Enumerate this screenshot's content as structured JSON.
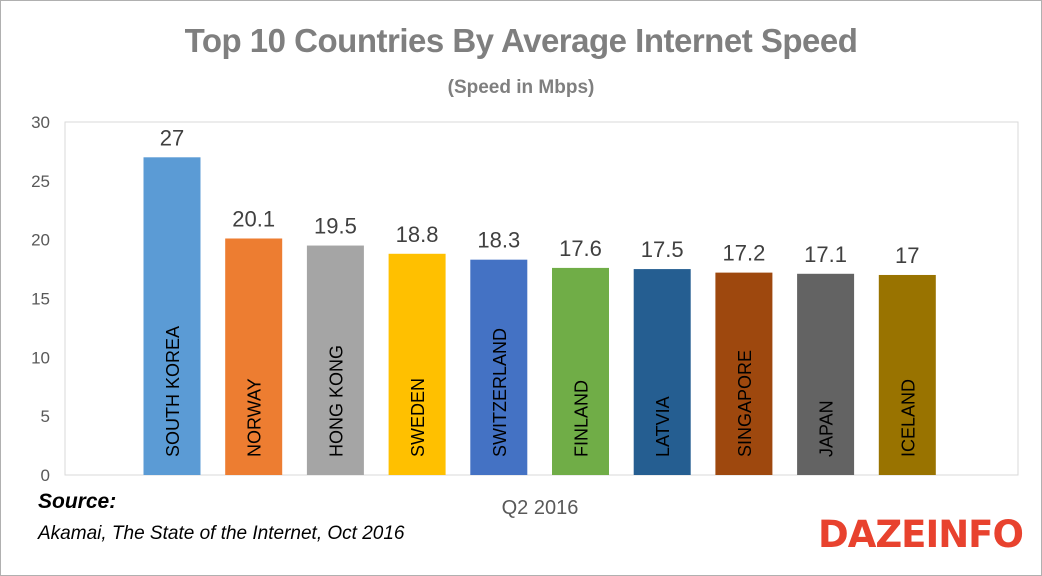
{
  "title": "Top 10 Countries By Average Internet Speed",
  "subtitle": "(Speed in Mbps)",
  "source": {
    "heading": "Source:",
    "text": "Akamai, The State of the Internet, Oct 2016"
  },
  "logo": "DAZEINFO",
  "colors": {
    "axis": "#d9d9d9",
    "tick_text": "#595959",
    "bar_label": "#000000",
    "value_label": "#404040"
  },
  "chart_data": {
    "type": "bar",
    "title": "Top 10 Countries By Average Internet Speed",
    "subtitle": "(Speed in Mbps)",
    "xlabel": "Q2 2016",
    "ylabel": "",
    "ylim": [
      0,
      30
    ],
    "yticks": [
      0,
      5,
      10,
      15,
      20,
      25,
      30
    ],
    "grid": false,
    "legend": "none",
    "categories": [
      "SOUTH KOREA",
      "NORWAY",
      "HONG KONG",
      "SWEDEN",
      "SWITZERLAND",
      "FINLAND",
      "LATVIA",
      "SINGAPORE",
      "JAPAN",
      "ICELAND"
    ],
    "values": [
      27,
      20.1,
      19.5,
      18.8,
      18.3,
      17.6,
      17.5,
      17.2,
      17.1,
      17
    ],
    "value_labels": [
      "27",
      "20.1",
      "19.5",
      "18.8",
      "18.3",
      "17.6",
      "17.5",
      "17.2",
      "17.1",
      "17"
    ],
    "bar_colors": [
      "#5b9bd5",
      "#ed7d31",
      "#a5a5a5",
      "#ffc000",
      "#4472c4",
      "#70ad47",
      "#255e91",
      "#9e480e",
      "#636363",
      "#997300"
    ]
  }
}
